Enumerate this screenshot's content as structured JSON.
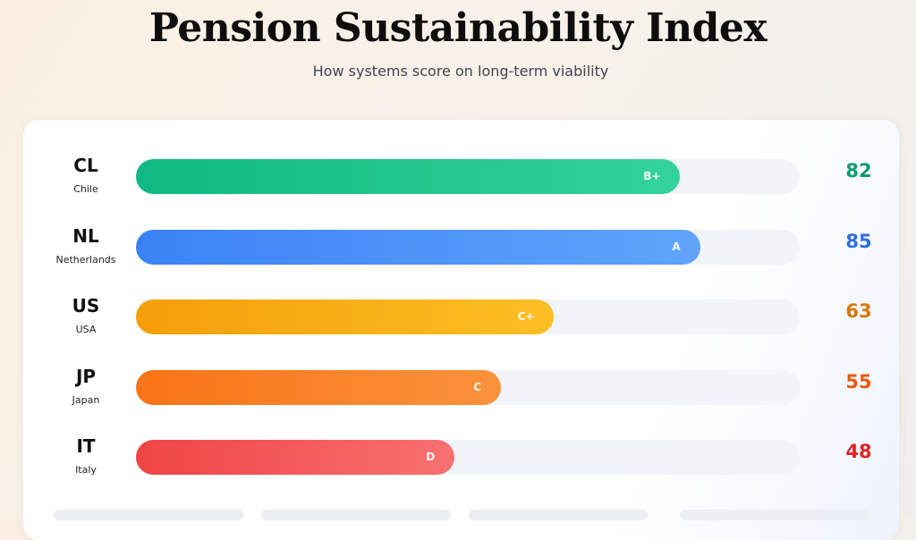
{
  "header": {
    "title": "Pension Sustainability Index",
    "subtitle": "How systems score on long-term viability"
  },
  "chart_data": {
    "type": "bar",
    "orientation": "horizontal",
    "title": "Pension Sustainability Index",
    "subtitle": "How systems score on long-term viability",
    "xlim": [
      0,
      100
    ],
    "grid": false,
    "categories": [
      "CL",
      "NL",
      "US",
      "JP",
      "IT"
    ],
    "rows": [
      {
        "code": "CL",
        "country": "Chile",
        "score": 82,
        "grade": "B+",
        "color_from": "#10b981",
        "color_to": "#34d399",
        "score_color": "#0f9b6e"
      },
      {
        "code": "NL",
        "country": "Netherlands",
        "score": 85,
        "grade": "A",
        "color_from": "#3b82f6",
        "color_to": "#60a5fa",
        "score_color": "#2f6fe0"
      },
      {
        "code": "US",
        "country": "USA",
        "score": 63,
        "grade": "C+",
        "color_from": "#f59e0b",
        "color_to": "#fbbf24",
        "score_color": "#d97706"
      },
      {
        "code": "JP",
        "country": "Japan",
        "score": 55,
        "grade": "C",
        "color_from": "#f97316",
        "color_to": "#fb923c",
        "score_color": "#ea580c"
      },
      {
        "code": "IT",
        "country": "Italy",
        "score": 48,
        "grade": "D",
        "color_from": "#ef4444",
        "color_to": "#f87171",
        "score_color": "#dc2626"
      }
    ]
  }
}
